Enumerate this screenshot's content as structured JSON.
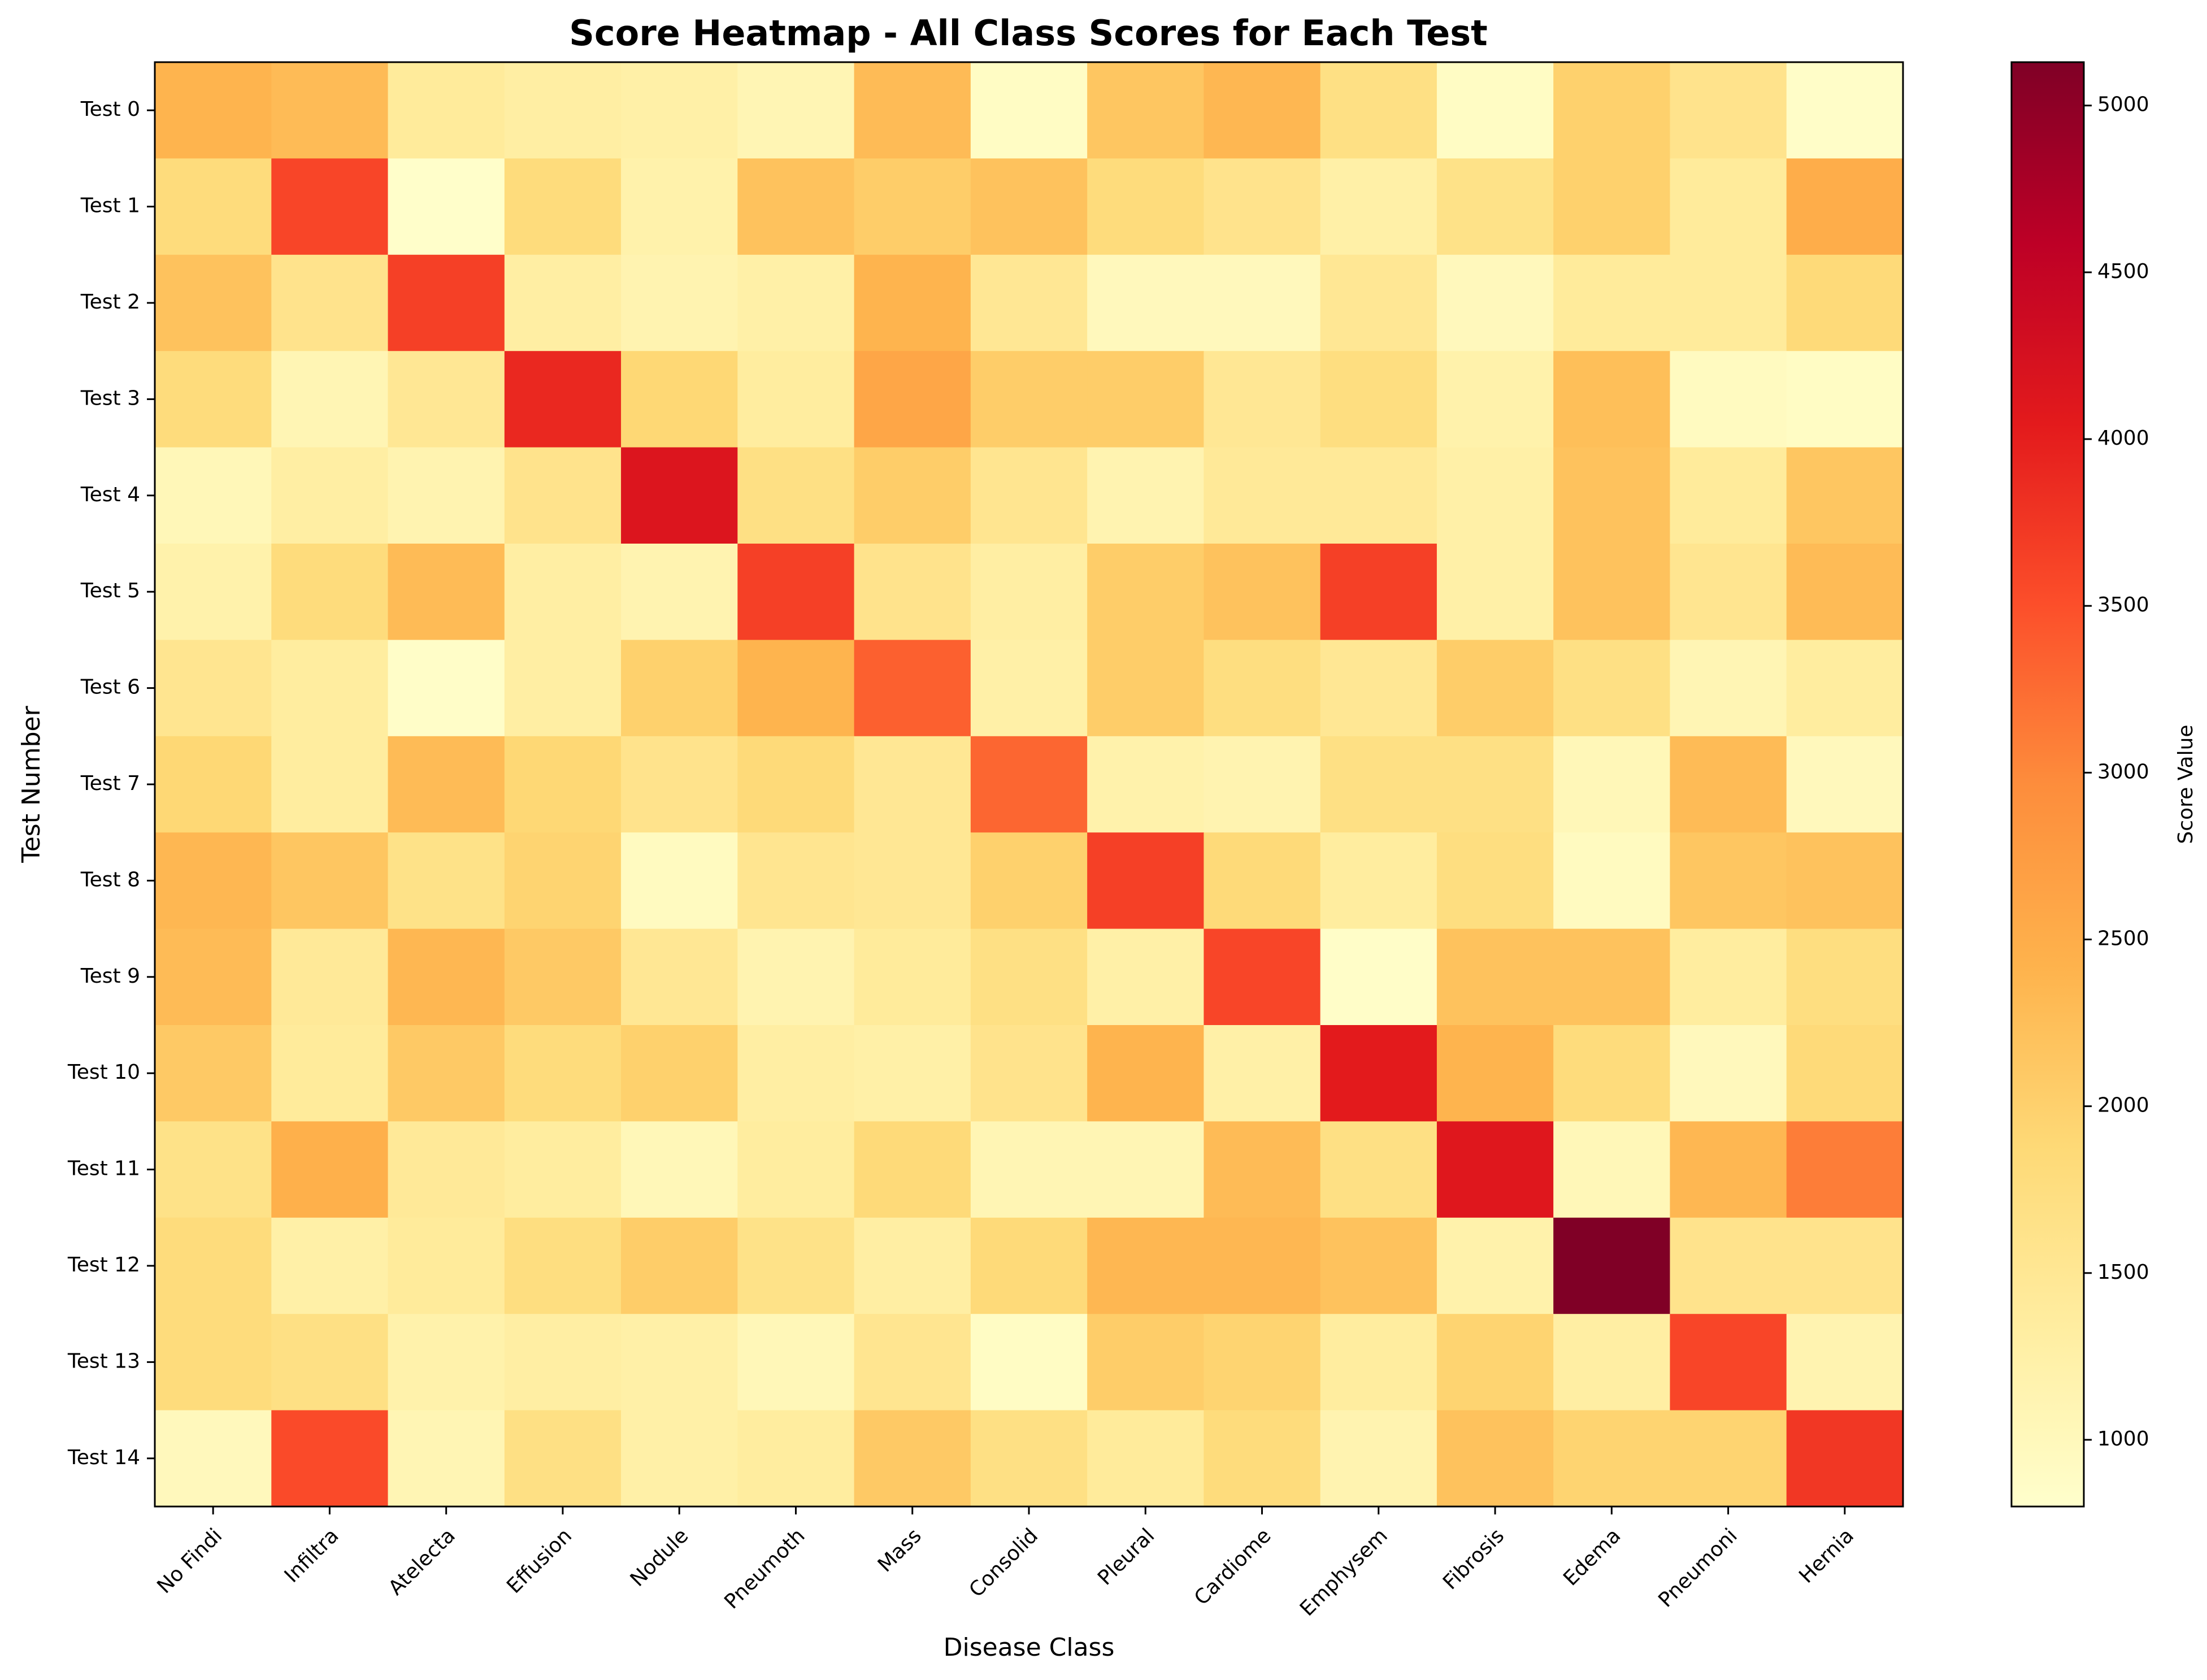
{
  "chart_data": {
    "type": "heatmap",
    "title": "Score Heatmap - All Class Scores for Each Test",
    "xlabel": "Disease Class",
    "ylabel": "Test Number",
    "colorbar_label": "Score Value",
    "colormap": "YlOrRd",
    "colorbar_range": [
      800,
      5130
    ],
    "colorbar_ticks": [
      1000,
      1500,
      2000,
      2500,
      3000,
      3500,
      4000,
      4500,
      5000
    ],
    "x_categories": [
      "No Findi",
      "Infiltra",
      "Atelecta",
      "Effusion",
      "Nodule",
      "Pneumoth",
      "Mass",
      "Consolid",
      "Pleural",
      "Cardiome",
      "Emphysem",
      "Fibrosis",
      "Edema",
      "Pneumoni",
      "Hernia"
    ],
    "y_categories": [
      "Test 0",
      "Test 1",
      "Test 2",
      "Test 3",
      "Test 4",
      "Test 5",
      "Test 6",
      "Test 7",
      "Test 8",
      "Test 9",
      "Test 10",
      "Test 11",
      "Test 12",
      "Test 13",
      "Test 14"
    ],
    "values": [
      [
        2400,
        2300,
        1400,
        1300,
        1250,
        1100,
        2300,
        900,
        2150,
        2350,
        1700,
        900,
        2000,
        1600,
        850
      ],
      [
        1800,
        3600,
        820,
        1800,
        1200,
        2200,
        2050,
        2200,
        1800,
        1600,
        1250,
        1650,
        2000,
        1400,
        2500
      ],
      [
        2200,
        1600,
        3650,
        1300,
        1150,
        1250,
        2400,
        1500,
        1000,
        1000,
        1500,
        1000,
        1400,
        1400,
        1850
      ],
      [
        1800,
        1100,
        1500,
        3900,
        1900,
        1350,
        2600,
        2050,
        2050,
        1500,
        1750,
        1200,
        2250,
        950,
        900
      ],
      [
        1050,
        1300,
        1150,
        1600,
        4150,
        1700,
        2050,
        1550,
        1150,
        1450,
        1450,
        1250,
        2200,
        1400,
        2150
      ],
      [
        1200,
        1800,
        2300,
        1300,
        1150,
        3650,
        1600,
        1300,
        2050,
        2200,
        3650,
        1250,
        2200,
        1550,
        2300
      ],
      [
        1550,
        1350,
        850,
        1300,
        2000,
        2400,
        3350,
        1250,
        2050,
        1750,
        1500,
        2050,
        1700,
        1100,
        1350
      ],
      [
        1900,
        1350,
        2300,
        1900,
        1600,
        1850,
        1500,
        3300,
        1200,
        1150,
        1700,
        1700,
        1050,
        2300,
        1000
      ],
      [
        2350,
        2150,
        1650,
        1950,
        950,
        1550,
        1500,
        2000,
        3650,
        1850,
        1350,
        1750,
        950,
        2150,
        2200
      ],
      [
        2300,
        1450,
        2350,
        2100,
        1500,
        1150,
        1400,
        1700,
        1250,
        3600,
        850,
        2200,
        2200,
        1350,
        1750
      ],
      [
        2100,
        1400,
        2100,
        1800,
        2000,
        1300,
        1250,
        1600,
        2400,
        1250,
        4050,
        2400,
        1800,
        1000,
        1850
      ],
      [
        1650,
        2450,
        1450,
        1350,
        1050,
        1350,
        1850,
        1100,
        1100,
        2300,
        1700,
        4100,
        1050,
        2350,
        3100
      ],
      [
        1800,
        1250,
        1400,
        1750,
        2050,
        1650,
        1300,
        1850,
        2350,
        2350,
        2200,
        1200,
        5130,
        1600,
        1600
      ],
      [
        1800,
        1700,
        1200,
        1300,
        1250,
        1050,
        1550,
        900,
        2050,
        1950,
        1350,
        1950,
        1300,
        3600,
        1150
      ],
      [
        1000,
        3550,
        1100,
        1700,
        1250,
        1350,
        2100,
        1700,
        1400,
        1800,
        1150,
        2200,
        1950,
        1950,
        3750
      ]
    ]
  }
}
